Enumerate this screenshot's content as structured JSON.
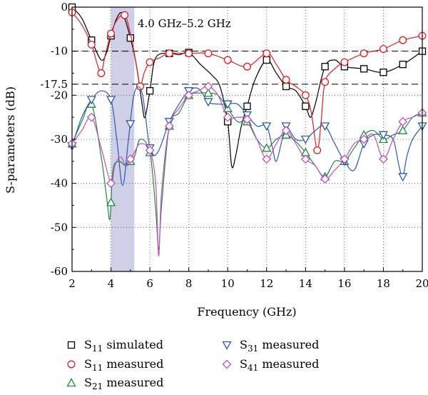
{
  "chart_data": {
    "type": "line",
    "xlabel": "Frequency (GHz)",
    "ylabel": "S-parameters (dB)",
    "xlim": [
      2,
      20
    ],
    "ylim": [
      -60,
      0
    ],
    "x_ticks": [
      2,
      4,
      6,
      8,
      10,
      12,
      14,
      16,
      18,
      20
    ],
    "x_tick_labels": [
      "2",
      "4",
      "6",
      "8",
      "10",
      "12",
      "14",
      "16",
      "18",
      "20"
    ],
    "y_ticks": [
      0,
      -10,
      -17.5,
      -20,
      -30,
      -40,
      -50,
      -60
    ],
    "y_tick_labels": [
      "0",
      "-10",
      "-17.5",
      "-20",
      "-30",
      "-40",
      "-50",
      "-60"
    ],
    "grid": "dotted",
    "shaded_band": {
      "x_start": 4.0,
      "x_end": 5.2,
      "color": "#cfcfe8",
      "label": "4.0 GHz–5.2 GHz"
    },
    "reference_lines": [
      {
        "y": -10,
        "style": "dashed"
      },
      {
        "y": -17.5,
        "style": "dashed"
      }
    ],
    "legend_position": "bottom",
    "series": [
      {
        "name": "S11 simulated",
        "name_main": "S",
        "name_sub": "11",
        "name_rest": " simulated",
        "color": "#000000",
        "marker": "square",
        "points": [
          [
            2,
            0
          ],
          [
            2.5,
            -2.5
          ],
          [
            3,
            -7.5
          ],
          [
            3.5,
            -12
          ],
          [
            3.8,
            -10
          ],
          [
            4,
            -6.5
          ],
          [
            4.3,
            -2.5
          ],
          [
            4.6,
            -1.5
          ],
          [
            5,
            -7
          ],
          [
            5.3,
            -13
          ],
          [
            5.6,
            -22
          ],
          [
            5.75,
            -25
          ],
          [
            6,
            -19
          ],
          [
            6.3,
            -11.5
          ],
          [
            7,
            -10.5
          ],
          [
            7.5,
            -10.8
          ],
          [
            8,
            -10.3
          ],
          [
            8.6,
            -13
          ],
          [
            9.2,
            -15.5
          ],
          [
            9.6,
            -18
          ],
          [
            10,
            -26
          ],
          [
            10.2,
            -36
          ],
          [
            10.4,
            -34
          ],
          [
            10.7,
            -27
          ],
          [
            11,
            -22.5
          ],
          [
            11.4,
            -16.5
          ],
          [
            12,
            -12
          ],
          [
            12.5,
            -15
          ],
          [
            13,
            -18
          ],
          [
            13.5,
            -19
          ],
          [
            14,
            -22.5
          ],
          [
            14.25,
            -25
          ],
          [
            14.5,
            -22
          ],
          [
            15,
            -13.5
          ],
          [
            15.5,
            -12
          ],
          [
            16,
            -13.5
          ],
          [
            17,
            -14
          ],
          [
            18,
            -14.8
          ],
          [
            19,
            -13
          ],
          [
            20,
            -10
          ]
        ],
        "markers_x": [
          2,
          3,
          4,
          5,
          6,
          7,
          8,
          10,
          11,
          12,
          13,
          14,
          15,
          16,
          17,
          18,
          19,
          20
        ]
      },
      {
        "name": "S11 measured",
        "name_main": "S",
        "name_sub": "11",
        "name_rest": " measured",
        "color": "#e8191f",
        "marker": "circle",
        "points": [
          [
            2,
            -1.2
          ],
          [
            2.5,
            -4
          ],
          [
            3,
            -8.5
          ],
          [
            3.3,
            -13
          ],
          [
            3.5,
            -15
          ],
          [
            3.7,
            -11
          ],
          [
            4,
            -6
          ],
          [
            4.3,
            -3
          ],
          [
            4.7,
            -1.8
          ],
          [
            5,
            -6
          ],
          [
            5.3,
            -13
          ],
          [
            5.5,
            -18
          ],
          [
            5.7,
            -15
          ],
          [
            6,
            -12.5
          ],
          [
            6.5,
            -11.5
          ],
          [
            7,
            -10.5
          ],
          [
            8,
            -10.5
          ],
          [
            9,
            -10.5
          ],
          [
            10,
            -12
          ],
          [
            11,
            -13.5
          ],
          [
            12,
            -10.5
          ],
          [
            12.5,
            -13
          ],
          [
            13,
            -16.5
          ],
          [
            13.5,
            -18
          ],
          [
            14,
            -20
          ],
          [
            14.3,
            -24
          ],
          [
            14.6,
            -32.5
          ],
          [
            14.8,
            -26
          ],
          [
            15,
            -17
          ],
          [
            15.5,
            -14
          ],
          [
            16,
            -12.5
          ],
          [
            17,
            -10.5
          ],
          [
            18,
            -9.5
          ],
          [
            19,
            -7.5
          ],
          [
            20,
            -6.5
          ]
        ],
        "markers_x": [
          2,
          3,
          3.5,
          4,
          4.7,
          5.5,
          6,
          7,
          8,
          9,
          10,
          11,
          12,
          13,
          14,
          14.6,
          15,
          16,
          17,
          18,
          19,
          20
        ]
      },
      {
        "name": "S21 measured",
        "name_main": "S",
        "name_sub": "21",
        "name_rest": " measured",
        "color": "#1f8a3c",
        "marker": "triangle-up",
        "points": [
          [
            2,
            -31
          ],
          [
            2.5,
            -26
          ],
          [
            3,
            -22
          ],
          [
            3.5,
            -34
          ],
          [
            3.8,
            -44
          ],
          [
            3.95,
            -48
          ],
          [
            4.1,
            -37
          ],
          [
            4.4,
            -35
          ],
          [
            4.8,
            -36
          ],
          [
            5.2,
            -34
          ],
          [
            5.5,
            -30
          ],
          [
            6,
            -33
          ],
          [
            6.3,
            -46
          ],
          [
            6.45,
            -55
          ],
          [
            6.6,
            -45
          ],
          [
            7,
            -27
          ],
          [
            7.5,
            -24
          ],
          [
            8,
            -20
          ],
          [
            8.5,
            -19.5
          ],
          [
            9,
            -19.5
          ],
          [
            9.5,
            -20
          ],
          [
            10,
            -23
          ],
          [
            10.5,
            -26
          ],
          [
            11,
            -26
          ],
          [
            11.5,
            -30
          ],
          [
            12,
            -32
          ],
          [
            12.5,
            -30
          ],
          [
            13,
            -29
          ],
          [
            13.5,
            -30.5
          ],
          [
            14,
            -33
          ],
          [
            14.5,
            -36
          ],
          [
            15,
            -38.5
          ],
          [
            15.5,
            -35
          ],
          [
            16,
            -35
          ],
          [
            16.5,
            -32
          ],
          [
            17,
            -29
          ],
          [
            17.5,
            -28
          ],
          [
            18,
            -30
          ],
          [
            18.5,
            -29
          ],
          [
            19,
            -28
          ],
          [
            19.5,
            -25
          ],
          [
            20,
            -24
          ]
        ],
        "markers_x": [
          2,
          3,
          4,
          5,
          6,
          7,
          8,
          9,
          10,
          11,
          12,
          13,
          14,
          15,
          16,
          17,
          18,
          19,
          20
        ]
      },
      {
        "name": "S31 measured",
        "name_main": "S",
        "name_sub": "31",
        "name_rest": " measured",
        "color": "#2e5aa8",
        "marker": "triangle-down",
        "points": [
          [
            2,
            -31.5
          ],
          [
            2.5,
            -25
          ],
          [
            3,
            -21
          ],
          [
            3.5,
            -19
          ],
          [
            4,
            -21
          ],
          [
            4.3,
            -30
          ],
          [
            4.6,
            -40.5
          ],
          [
            4.9,
            -30
          ],
          [
            5.2,
            -19.5
          ],
          [
            5.6,
            -19.5
          ],
          [
            6,
            -32
          ],
          [
            6.4,
            -33
          ],
          [
            7,
            -26
          ],
          [
            7.5,
            -22
          ],
          [
            8,
            -19
          ],
          [
            8.5,
            -18.5
          ],
          [
            9,
            -21.5
          ],
          [
            9.5,
            -22
          ],
          [
            10,
            -22
          ],
          [
            10.5,
            -22
          ],
          [
            11,
            -24.5
          ],
          [
            11.5,
            -27
          ],
          [
            12,
            -27
          ],
          [
            12.3,
            -32
          ],
          [
            12.5,
            -35
          ],
          [
            12.8,
            -30
          ],
          [
            13,
            -27
          ],
          [
            13.5,
            -30
          ],
          [
            14,
            -30
          ],
          [
            14.5,
            -28
          ],
          [
            15,
            -27
          ],
          [
            15.5,
            -31
          ],
          [
            16,
            -35
          ],
          [
            16.5,
            -37
          ],
          [
            17,
            -31
          ],
          [
            17.5,
            -29
          ],
          [
            18,
            -29
          ],
          [
            18.5,
            -30
          ],
          [
            18.8,
            -36
          ],
          [
            19,
            -38.5
          ],
          [
            19.2,
            -34
          ],
          [
            19.5,
            -30
          ],
          [
            20,
            -27
          ]
        ],
        "markers_x": [
          2,
          3,
          4,
          5,
          6,
          7,
          8,
          9,
          10,
          11,
          12,
          13,
          14,
          15,
          16,
          17,
          18,
          19,
          20
        ]
      },
      {
        "name": "S41 measured",
        "name_main": "S",
        "name_sub": "41",
        "name_rest": " measured",
        "color": "#c04fc0",
        "marker": "diamond",
        "points": [
          [
            2,
            -31
          ],
          [
            2.5,
            -28
          ],
          [
            3,
            -25
          ],
          [
            3.5,
            -32
          ],
          [
            4,
            -40
          ],
          [
            4.2,
            -36
          ],
          [
            4.5,
            -34
          ],
          [
            4.8,
            -36
          ],
          [
            5.2,
            -33
          ],
          [
            5.5,
            -31
          ],
          [
            6,
            -32.5
          ],
          [
            6.3,
            -40
          ],
          [
            6.45,
            -56.5
          ],
          [
            6.6,
            -42
          ],
          [
            7,
            -27
          ],
          [
            7.5,
            -23
          ],
          [
            8,
            -20
          ],
          [
            8.5,
            -19
          ],
          [
            9,
            -18
          ],
          [
            9.5,
            -20
          ],
          [
            10,
            -25
          ],
          [
            10.5,
            -25
          ],
          [
            11,
            -25.5
          ],
          [
            11.5,
            -30
          ],
          [
            12,
            -34.5
          ],
          [
            12.5,
            -31
          ],
          [
            13,
            -28
          ],
          [
            13.5,
            -31
          ],
          [
            14,
            -34.5
          ],
          [
            14.5,
            -36
          ],
          [
            15,
            -39
          ],
          [
            15.5,
            -37
          ],
          [
            16,
            -34.5
          ],
          [
            16.5,
            -31
          ],
          [
            17,
            -30
          ],
          [
            17.5,
            -29
          ],
          [
            18,
            -34.5
          ],
          [
            18.5,
            -30
          ],
          [
            19,
            -26
          ],
          [
            19.5,
            -25
          ],
          [
            20,
            -24
          ]
        ],
        "markers_x": [
          2,
          3,
          4,
          5,
          6,
          7,
          8,
          9,
          10,
          11,
          12,
          13,
          14,
          15,
          16,
          17,
          18,
          19,
          20
        ]
      }
    ]
  }
}
